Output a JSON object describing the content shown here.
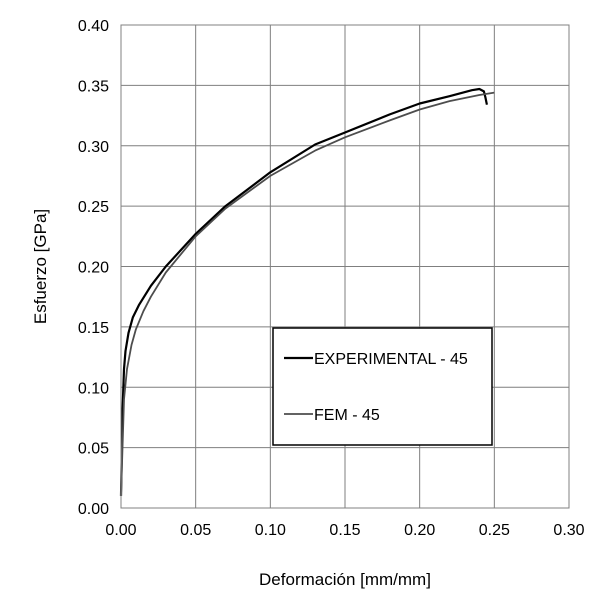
{
  "chart_data": {
    "type": "line",
    "title": "",
    "xlabel": "Deformación [mm/mm]",
    "ylabel": "Esfuerzo [GPa]",
    "xlim": [
      0,
      0.3
    ],
    "ylim": [
      0,
      0.4
    ],
    "x_ticks": [
      "0.00",
      "0.05",
      "0.10",
      "0.15",
      "0.20",
      "0.25",
      "0.30"
    ],
    "y_ticks": [
      "0.00",
      "0.05",
      "0.10",
      "0.15",
      "0.20",
      "0.25",
      "0.30",
      "0.35",
      "0.40"
    ],
    "grid": true,
    "legend_position": "center-right",
    "series": [
      {
        "name": "EXPERIMENTAL - 45",
        "color": "#000000",
        "x": [
          0.0,
          0.001,
          0.002,
          0.003,
          0.005,
          0.008,
          0.012,
          0.02,
          0.03,
          0.05,
          0.07,
          0.1,
          0.13,
          0.15,
          0.18,
          0.2,
          0.22,
          0.235,
          0.24,
          0.243,
          0.244,
          0.245
        ],
        "y": [
          0.01,
          0.08,
          0.115,
          0.13,
          0.145,
          0.158,
          0.168,
          0.184,
          0.2,
          0.227,
          0.25,
          0.278,
          0.301,
          0.311,
          0.326,
          0.335,
          0.341,
          0.346,
          0.347,
          0.345,
          0.34,
          0.334
        ]
      },
      {
        "name": "FEM - 45",
        "color": "#4d4d4d",
        "x": [
          0.0,
          0.002,
          0.004,
          0.007,
          0.01,
          0.015,
          0.02,
          0.03,
          0.05,
          0.07,
          0.1,
          0.13,
          0.15,
          0.18,
          0.2,
          0.22,
          0.24,
          0.25
        ],
        "y": [
          0.01,
          0.09,
          0.115,
          0.135,
          0.148,
          0.163,
          0.175,
          0.195,
          0.225,
          0.248,
          0.275,
          0.296,
          0.307,
          0.321,
          0.33,
          0.337,
          0.342,
          0.344
        ]
      }
    ]
  }
}
